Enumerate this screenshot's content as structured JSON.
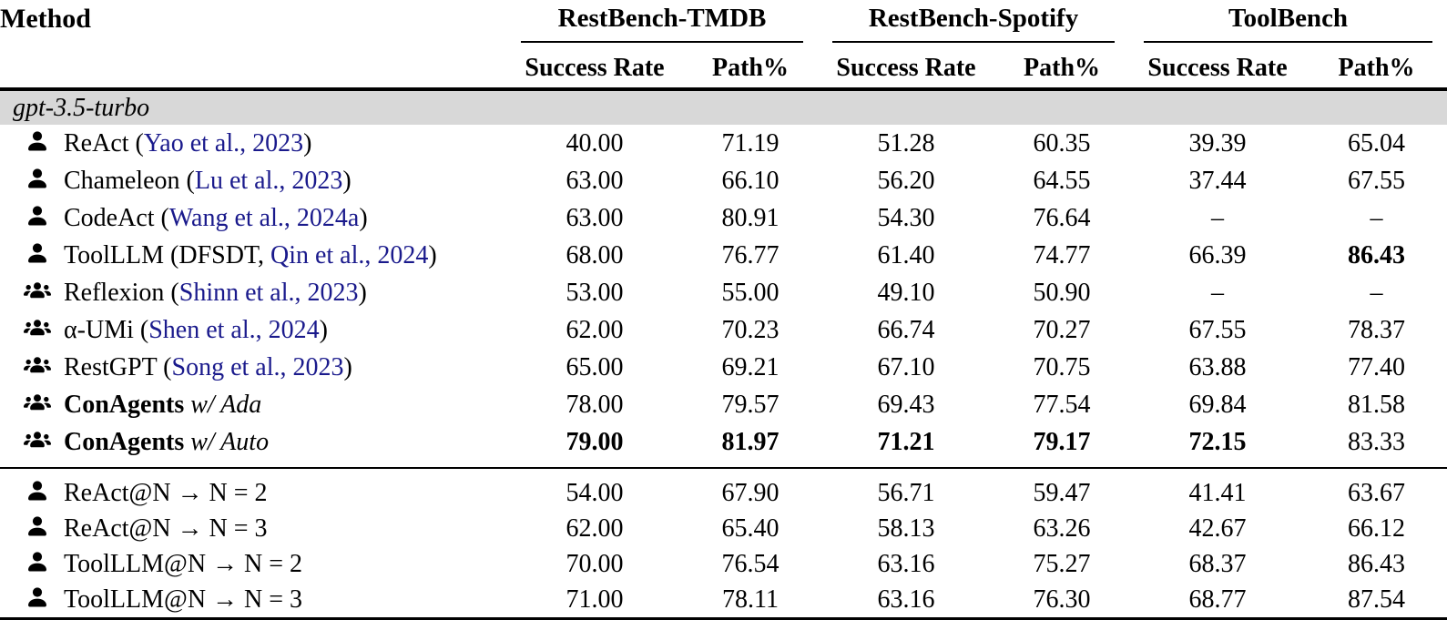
{
  "colors": {
    "citation": "#1a1a8c",
    "band_bg": "#d8d8d8",
    "rule": "#000000"
  },
  "icons": {
    "single_agent": "user-icon",
    "multi_agent": "users-icon"
  },
  "header": {
    "method_label": "Method",
    "groups": [
      {
        "label": "RestBench-TMDB",
        "cols": [
          "Success Rate",
          "Path%"
        ]
      },
      {
        "label": "RestBench-Spotify",
        "cols": [
          "Success Rate",
          "Path%"
        ]
      },
      {
        "label": "ToolBench",
        "cols": [
          "Success Rate",
          "Path%"
        ]
      }
    ]
  },
  "sections": [
    {
      "band_label": "gpt-3.5-turbo",
      "rows": [
        {
          "icon": "single-agent",
          "pre": "ReAct (",
          "cite": "Yao et al., 2023",
          "post": ")",
          "values": [
            "40.00",
            "71.19",
            "51.28",
            "60.35",
            "39.39",
            "65.04"
          ],
          "bold": [
            0,
            0,
            0,
            0,
            0,
            0
          ]
        },
        {
          "icon": "single-agent",
          "pre": "Chameleon (",
          "cite": "Lu et al., 2023",
          "post": ")",
          "values": [
            "63.00",
            "66.10",
            "56.20",
            "64.55",
            "37.44",
            "67.55"
          ],
          "bold": [
            0,
            0,
            0,
            0,
            0,
            0
          ]
        },
        {
          "icon": "single-agent",
          "pre": "CodeAct (",
          "cite": "Wang et al., 2024a",
          "post": ")",
          "values": [
            "63.00",
            "80.91",
            "54.30",
            "76.64",
            "–",
            "–"
          ],
          "bold": [
            0,
            0,
            0,
            0,
            0,
            0
          ]
        },
        {
          "icon": "single-agent",
          "pre": "ToolLLM (DFSDT, ",
          "cite": "Qin et al., 2024",
          "post": ")",
          "values": [
            "68.00",
            "76.77",
            "61.40",
            "74.77",
            "66.39",
            "86.43"
          ],
          "bold": [
            0,
            0,
            0,
            0,
            0,
            1
          ]
        },
        {
          "icon": "multi-agent",
          "pre": "Reflexion (",
          "cite": "Shinn et al., 2023",
          "post": ")",
          "values": [
            "53.00",
            "55.00",
            "49.10",
            "50.90",
            "–",
            "–"
          ],
          "bold": [
            0,
            0,
            0,
            0,
            0,
            0
          ]
        },
        {
          "icon": "multi-agent",
          "pre": "α-UMi (",
          "cite": "Shen et al., 2024",
          "post": ")",
          "values": [
            "62.00",
            "70.23",
            "66.74",
            "70.27",
            "67.55",
            "78.37"
          ],
          "bold": [
            0,
            0,
            0,
            0,
            0,
            0
          ]
        },
        {
          "icon": "multi-agent",
          "pre": "RestGPT (",
          "cite": "Song et al., 2023",
          "post": ")",
          "values": [
            "65.00",
            "69.21",
            "67.10",
            "70.75",
            "63.88",
            "77.40"
          ],
          "bold": [
            0,
            0,
            0,
            0,
            0,
            0
          ]
        },
        {
          "icon": "multi-agent",
          "bold_name": "ConAgents",
          "italic_suffix": " w/ Ada",
          "values": [
            "78.00",
            "79.57",
            "69.43",
            "77.54",
            "69.84",
            "81.58"
          ],
          "bold": [
            0,
            0,
            0,
            0,
            0,
            0
          ]
        },
        {
          "icon": "multi-agent",
          "bold_name": "ConAgents",
          "italic_suffix": " w/ Auto",
          "values": [
            "79.00",
            "81.97",
            "71.21",
            "79.17",
            "72.15",
            "83.33"
          ],
          "bold": [
            1,
            1,
            1,
            1,
            1,
            0
          ]
        }
      ]
    },
    {
      "band_label": null,
      "rows": [
        {
          "icon": "single-agent",
          "pre": "ReAct@N → N = 2",
          "values": [
            "54.00",
            "67.90",
            "56.71",
            "59.47",
            "41.41",
            "63.67"
          ],
          "bold": [
            0,
            0,
            0,
            0,
            0,
            0
          ]
        },
        {
          "icon": "single-agent",
          "pre": "ReAct@N → N = 3",
          "values": [
            "62.00",
            "65.40",
            "58.13",
            "63.26",
            "42.67",
            "66.12"
          ],
          "bold": [
            0,
            0,
            0,
            0,
            0,
            0
          ]
        },
        {
          "icon": "single-agent",
          "pre": "ToolLLM@N → N = 2",
          "values": [
            "70.00",
            "76.54",
            "63.16",
            "75.27",
            "68.37",
            "86.43"
          ],
          "bold": [
            0,
            0,
            0,
            0,
            0,
            0
          ]
        },
        {
          "icon": "single-agent",
          "pre": "ToolLLM@N → N = 3",
          "values": [
            "71.00",
            "78.11",
            "63.16",
            "76.30",
            "68.77",
            "87.54"
          ],
          "bold": [
            0,
            0,
            0,
            0,
            0,
            0
          ]
        }
      ]
    }
  ]
}
